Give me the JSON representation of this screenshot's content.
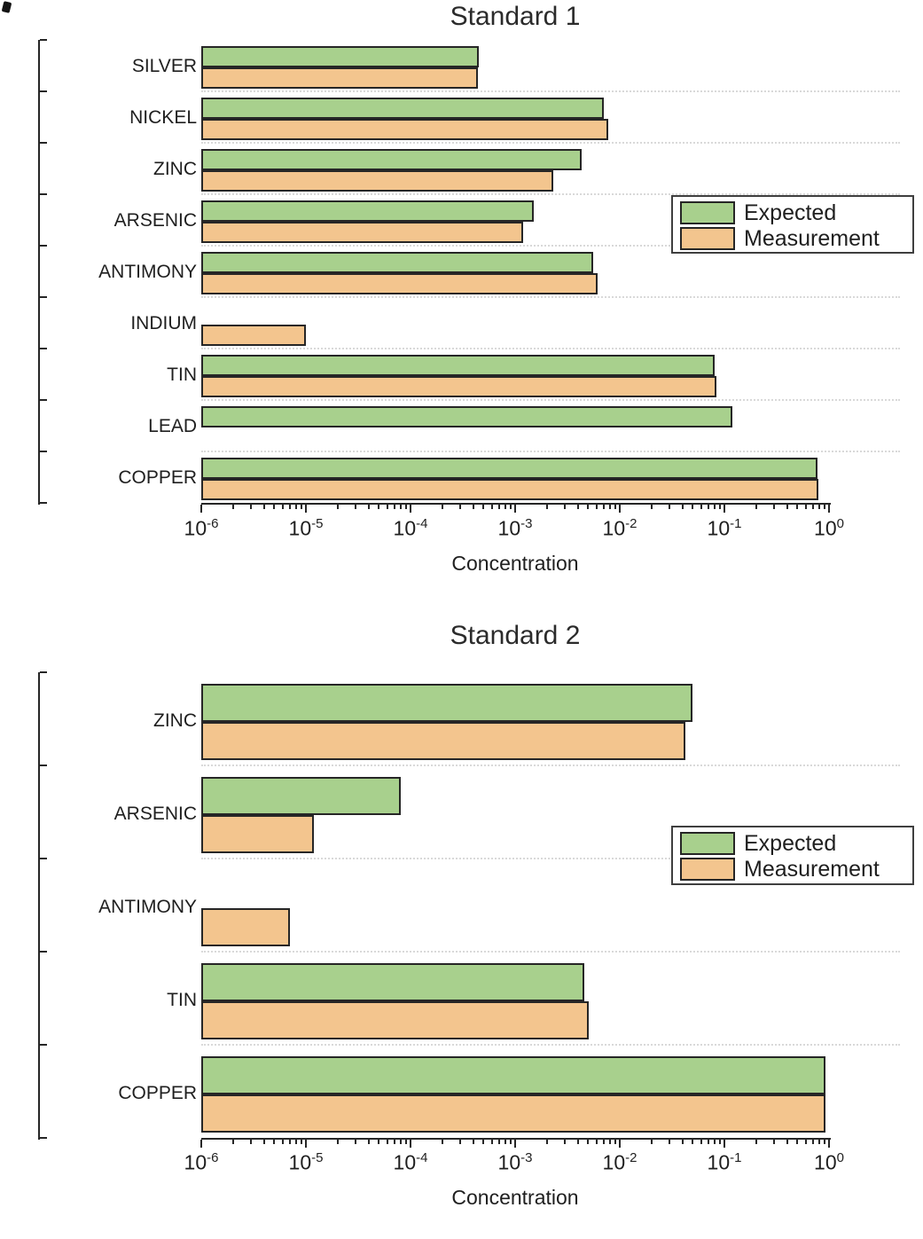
{
  "figure": {
    "background": "#ffffff"
  },
  "colors": {
    "expected_fill": "#a8d08d",
    "measurement_fill": "#f3c58e",
    "bar_border": "#262626",
    "axis": "#262626",
    "text": "#1f1f1f",
    "gridline": "#d9d9d9",
    "legend_border": "#3f3f3f"
  },
  "chart_data": [
    {
      "type": "bar",
      "orientation": "horizontal",
      "title": "Standard 1",
      "xlabel": "Concentration",
      "xscale": "log",
      "xlim": [
        1e-06,
        1
      ],
      "x_tick_base": "10",
      "x_tick_exponents": [
        -6,
        -5,
        -4,
        -3,
        -2,
        -1,
        0
      ],
      "grid": "dotted-horizontal",
      "legend_position": "right-inside",
      "categories": [
        "SILVER",
        "NICKEL",
        "ZINC",
        "ARSENIC",
        "ANTIMONY",
        "INDIUM",
        "TIN",
        "LEAD",
        "COPPER"
      ],
      "series": [
        {
          "name": "Expected",
          "values": [
            0.00045,
            0.007,
            0.0043,
            0.0015,
            0.0056,
            null,
            0.08,
            0.12,
            0.78
          ]
        },
        {
          "name": "Measurement",
          "values": [
            0.00044,
            0.0077,
            0.0023,
            0.0012,
            0.0061,
            1e-05,
            0.084,
            null,
            0.79
          ]
        }
      ]
    },
    {
      "type": "bar",
      "orientation": "horizontal",
      "title": "Standard 2",
      "xlabel": "Concentration",
      "xscale": "log",
      "xlim": [
        1e-06,
        1
      ],
      "x_tick_base": "10",
      "x_tick_exponents": [
        -6,
        -5,
        -4,
        -3,
        -2,
        -1,
        0
      ],
      "grid": "dotted-horizontal",
      "legend_position": "right-inside",
      "categories": [
        "ZINC",
        "ARSENIC",
        "ANTIMONY",
        "TIN",
        "COPPER"
      ],
      "series": [
        {
          "name": "Expected",
          "values": [
            0.05,
            8e-05,
            null,
            0.0046,
            0.93
          ]
        },
        {
          "name": "Measurement",
          "values": [
            0.042,
            1.2e-05,
            7e-06,
            0.0051,
            0.93
          ]
        }
      ]
    }
  ]
}
